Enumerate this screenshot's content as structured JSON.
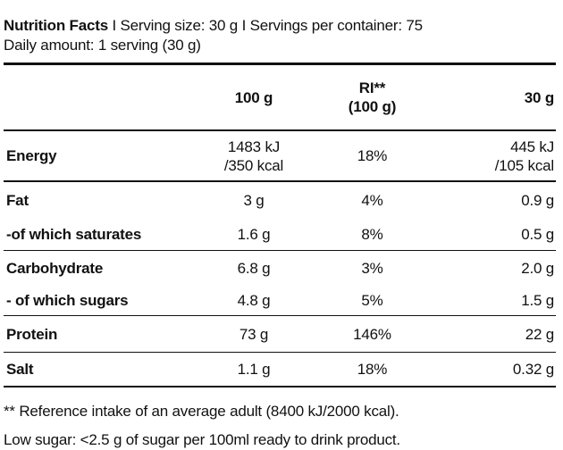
{
  "header": {
    "title": "Nutrition Facts",
    "separator1": " I ",
    "serving_size": "Serving size: 30 g",
    "separator2": " I ",
    "servings_per_container": "Servings per container: 75",
    "daily_amount": "Daily amount: 1 serving (30 g)"
  },
  "table": {
    "columns": {
      "per100": "100 g",
      "ri_line1": "RI**",
      "ri_line2": "(100 g)",
      "per_serving": "30 g"
    },
    "rows": [
      {
        "name": "Energy",
        "per100_a": "1483 kJ",
        "per100_b": "/350 kcal",
        "ri": "18%",
        "serving_a": "445 kJ",
        "serving_b": "/105 kcal"
      },
      {
        "name": "Fat",
        "per100": "3 g",
        "ri": "4%",
        "serving": "0.9 g"
      },
      {
        "name": "-of which saturates",
        "per100": "1.6 g",
        "ri": "8%",
        "serving": "0.5 g"
      },
      {
        "name": "Carbohydrate",
        "per100": "6.8 g",
        "ri": "3%",
        "serving": "2.0 g"
      },
      {
        "name": "- of which sugars",
        "per100": "4.8 g",
        "ri": "5%",
        "serving": "1.5 g"
      },
      {
        "name": "Protein",
        "per100": "73 g",
        "ri": "146%",
        "serving": "22 g"
      },
      {
        "name": "Salt",
        "per100": "1.1 g",
        "ri": "18%",
        "serving": "0.32 g"
      }
    ]
  },
  "footnotes": {
    "reference": "** Reference intake of an average adult (8400 kJ/2000 kcal).",
    "low_sugar": "Low sugar: <2.5 g of sugar per 100ml ready to drink product."
  }
}
